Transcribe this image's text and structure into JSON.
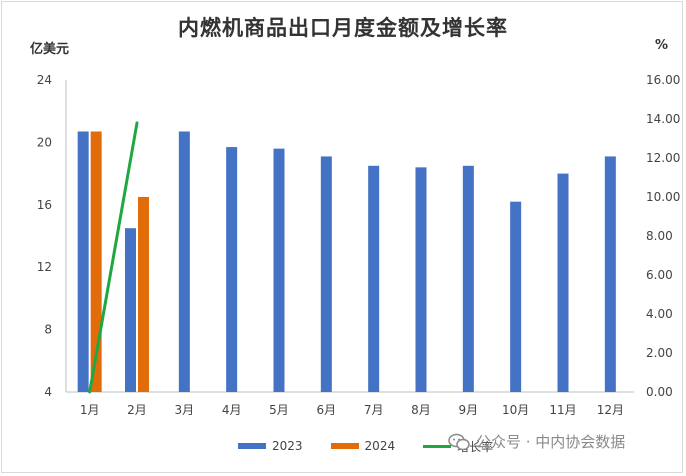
{
  "title": "内燃机商品出口月度金额及增长率",
  "y_left_unit": "亿美元",
  "y_right_unit": "%",
  "watermark": "公众号 · 中内协会数据",
  "colors": {
    "s2023": "#4472C4",
    "s2024": "#E36C0A",
    "growth": "#20A840"
  },
  "chart_data": {
    "type": "bar",
    "categories": [
      "1月",
      "2月",
      "3月",
      "4月",
      "5月",
      "6月",
      "7月",
      "8月",
      "9月",
      "10月",
      "11月",
      "12月"
    ],
    "series": [
      {
        "name": "2023",
        "type": "bar",
        "axis": "left",
        "values": [
          20.7,
          14.5,
          20.7,
          19.7,
          19.6,
          19.1,
          18.5,
          18.4,
          18.5,
          16.2,
          18.0,
          19.1
        ]
      },
      {
        "name": "2024",
        "type": "bar",
        "axis": "left",
        "values": [
          20.7,
          16.5,
          null,
          null,
          null,
          null,
          null,
          null,
          null,
          null,
          null,
          null
        ]
      },
      {
        "name": "增长率",
        "type": "line",
        "axis": "right",
        "values": [
          0.0,
          13.8,
          null,
          null,
          null,
          null,
          null,
          null,
          null,
          null,
          null,
          null
        ]
      }
    ],
    "y_left": {
      "min": 4,
      "max": 24,
      "ticks": [
        "4",
        "8",
        "12",
        "16",
        "20",
        "24"
      ]
    },
    "y_right": {
      "min": 0,
      "max": 16,
      "ticks": [
        "0.00",
        "2.00",
        "4.00",
        "6.00",
        "8.00",
        "10.00",
        "12.00",
        "14.00",
        "16.00"
      ]
    }
  }
}
